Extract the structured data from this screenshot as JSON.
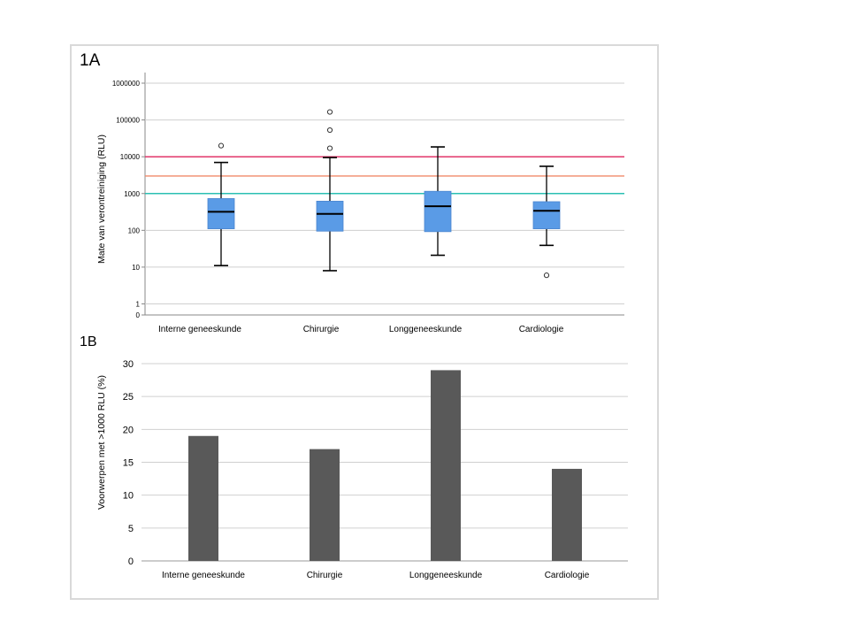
{
  "panels": {
    "a_label": "1A",
    "b_label": "1B"
  },
  "chart_data": [
    {
      "type": "box",
      "title": "",
      "xlabel": "",
      "ylabel": "Mate van verontreiniging (RLU)",
      "yscale": "log",
      "yticks": [
        "0",
        "1",
        "10",
        "100",
        "1000",
        "10000",
        "100000",
        "1000000"
      ],
      "categories": [
        "Interne geneeskunde",
        "Chirurgie",
        "Longgeneeskunde",
        "Cardiologie"
      ],
      "boxes": [
        {
          "whisker_low": 11,
          "q1": 110,
          "median": 320,
          "q3": 730,
          "whisker_high": 7000,
          "outliers": [
            20000
          ]
        },
        {
          "whisker_low": 8,
          "q1": 95,
          "median": 280,
          "q3": 620,
          "whisker_high": 9500,
          "outliers": [
            17000,
            53000,
            165000
          ]
        },
        {
          "whisker_low": 21,
          "q1": 92,
          "median": 450,
          "q3": 1150,
          "whisker_high": 18500,
          "outliers": []
        },
        {
          "whisker_low": 39,
          "q1": 110,
          "median": 340,
          "q3": 600,
          "whisker_high": 5500,
          "outliers": [
            6
          ]
        }
      ],
      "reference_lines": [
        {
          "value": 10000,
          "color": "#e0245e"
        },
        {
          "value": 3000,
          "color": "#f08a6a"
        },
        {
          "value": 1000,
          "color": "#2bbfb3"
        }
      ],
      "box_color": "#5a9be6",
      "grid": true
    },
    {
      "type": "bar",
      "title": "",
      "xlabel": "",
      "ylabel": "Voorwerpen met >1000 RLU (%)",
      "categories": [
        "Interne geneeskunde",
        "Chirurgie",
        "Longgeneeskunde",
        "Cardiologie"
      ],
      "values": [
        19,
        17,
        29,
        14
      ],
      "ylim": [
        0,
        30
      ],
      "yticks": [
        0,
        5,
        10,
        15,
        20,
        25,
        30
      ],
      "bar_color": "#595959",
      "grid": true
    }
  ]
}
